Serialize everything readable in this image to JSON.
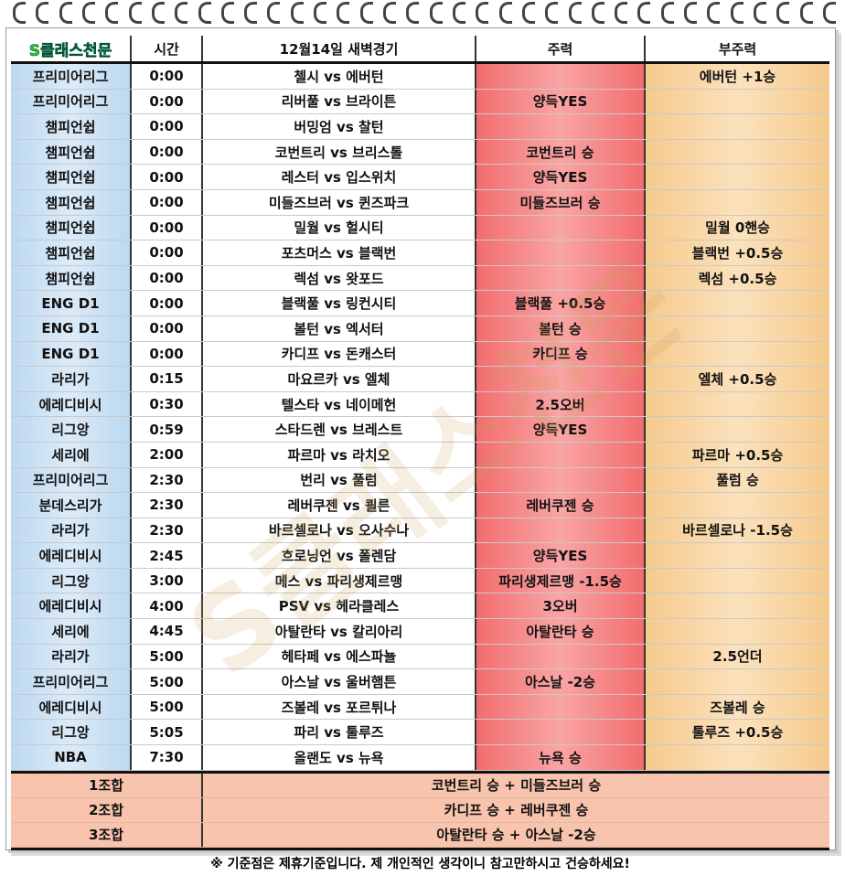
{
  "header": {
    "brand": "S클래스천문",
    "time": "시간",
    "match": "12월14일 새벽경기",
    "main": "주력",
    "sub": "부주력"
  },
  "rows": [
    {
      "league": "프리미어리그",
      "time": "0:00",
      "match": "첼시 vs 에버턴",
      "main": "",
      "sub": "에버턴 +1승"
    },
    {
      "league": "프리미어리그",
      "time": "0:00",
      "match": "리버풀 vs 브라이튼",
      "main": "양득YES",
      "sub": ""
    },
    {
      "league": "챔피언쉽",
      "time": "0:00",
      "match": "버밍엄 vs 찰턴",
      "main": "",
      "sub": ""
    },
    {
      "league": "챔피언쉽",
      "time": "0:00",
      "match": "코번트리 vs 브리스톨",
      "main": "코번트리 승",
      "sub": ""
    },
    {
      "league": "챔피언쉽",
      "time": "0:00",
      "match": "레스터 vs 입스위치",
      "main": "양득YES",
      "sub": ""
    },
    {
      "league": "챔피언쉽",
      "time": "0:00",
      "match": "미들즈브러 vs 퀸즈파크",
      "main": "미들즈브러 승",
      "sub": ""
    },
    {
      "league": "챔피언쉽",
      "time": "0:00",
      "match": "밀월 vs 헐시티",
      "main": "",
      "sub": "밀월 0핸승"
    },
    {
      "league": "챔피언쉽",
      "time": "0:00",
      "match": "포츠머스 vs 블랙번",
      "main": "",
      "sub": "블랙번 +0.5승"
    },
    {
      "league": "챔피언쉽",
      "time": "0:00",
      "match": "렉섬 vs 왓포드",
      "main": "",
      "sub": "렉섬 +0.5승"
    },
    {
      "league": "ENG D1",
      "time": "0:00",
      "match": "블랙풀 vs 링컨시티",
      "main": "블랙풀 +0.5승",
      "sub": ""
    },
    {
      "league": "ENG D1",
      "time": "0:00",
      "match": "볼턴 vs 엑서터",
      "main": "볼턴 승",
      "sub": ""
    },
    {
      "league": "ENG D1",
      "time": "0:00",
      "match": "카디프 vs 돈캐스터",
      "main": "카디프 승",
      "sub": ""
    },
    {
      "league": "라리가",
      "time": "0:15",
      "match": "마요르카 vs 엘체",
      "main": "",
      "sub": "엘체 +0.5승"
    },
    {
      "league": "에레디비시",
      "time": "0:30",
      "match": "텔스타 vs 네이메헌",
      "main": "2.5오버",
      "sub": ""
    },
    {
      "league": "리그앙",
      "time": "0:59",
      "match": "스타드렌 vs 브레스트",
      "main": "양득YES",
      "sub": ""
    },
    {
      "league": "세리에",
      "time": "2:00",
      "match": "파르마 vs 라치오",
      "main": "",
      "sub": "파르마 +0.5승"
    },
    {
      "league": "프리미어리그",
      "time": "2:30",
      "match": "번리 vs 풀럼",
      "main": "",
      "sub": "풀럼 승"
    },
    {
      "league": "분데스리가",
      "time": "2:30",
      "match": "레버쿠젠 vs 쾰른",
      "main": "레버쿠젠 승",
      "sub": ""
    },
    {
      "league": "라리가",
      "time": "2:30",
      "match": "바르셀로나 vs 오사수나",
      "main": "",
      "sub": "바르셀로나 -1.5승"
    },
    {
      "league": "에레디비시",
      "time": "2:45",
      "match": "흐로닝언 vs 폴렌담",
      "main": "양득YES",
      "sub": ""
    },
    {
      "league": "리그앙",
      "time": "3:00",
      "match": "메스 vs 파리생제르맹",
      "main": "파리생제르맹 -1.5승",
      "sub": ""
    },
    {
      "league": "에레디비시",
      "time": "4:00",
      "match": "PSV vs 헤라클레스",
      "main": "3오버",
      "sub": ""
    },
    {
      "league": "세리에",
      "time": "4:45",
      "match": "아탈란타 vs 칼리아리",
      "main": "아탈란타 승",
      "sub": ""
    },
    {
      "league": "라리가",
      "time": "5:00",
      "match": "헤타페 vs 에스파뇰",
      "main": "",
      "sub": "2.5언더"
    },
    {
      "league": "프리미어리그",
      "time": "5:00",
      "match": "아스날 vs 울버햄튼",
      "main": "아스날 -2승",
      "sub": ""
    },
    {
      "league": "에레디비시",
      "time": "5:00",
      "match": "즈볼레 vs 포르튀나",
      "main": "",
      "sub": "즈볼레 승"
    },
    {
      "league": "리그앙",
      "time": "5:05",
      "match": "파리 vs 툴루즈",
      "main": "",
      "sub": "툴루즈 +0.5승"
    },
    {
      "league": "NBA",
      "time": "7:30",
      "match": "올랜도 vs 뉴욕",
      "main": "뉴욕 승",
      "sub": ""
    }
  ],
  "combos": [
    {
      "label": "1조합",
      "value": "코번트리 승 + 미들즈브러 승"
    },
    {
      "label": "2조합",
      "value": "카디프 승 + 레버쿠젠 승"
    },
    {
      "label": "3조합",
      "value": "아탈란타 승 + 아스날 -2승"
    }
  ],
  "footer": "※ 기준점은 제휴기준입니다. 제 개인적인 생각이니 참고만하시고 건승하세요!",
  "watermark": "S클래스천문",
  "colors": {
    "league": "#bcd8ef",
    "main": "#f26d6d",
    "sub": "#f6c98c",
    "combo": "#f9c4ad",
    "brand": "#2bcf2b"
  }
}
